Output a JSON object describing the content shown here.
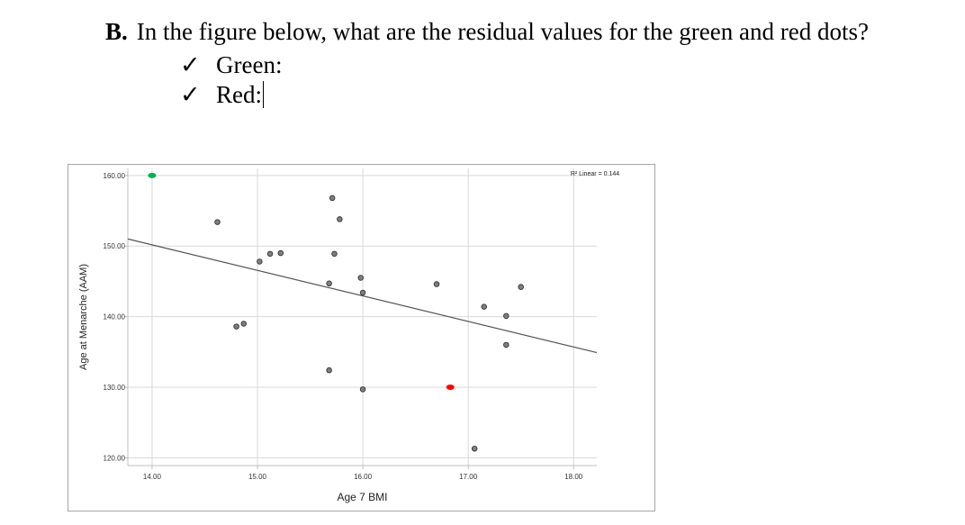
{
  "question": {
    "number": "B.",
    "text": "In the figure below, what are the residual values for the green and red dots?"
  },
  "answers": [
    {
      "check": "✓",
      "label": "Green:"
    },
    {
      "check": "✓",
      "label": "Red:"
    }
  ],
  "chart_data": {
    "type": "scatter",
    "xlabel": "Age 7 BMI",
    "ylabel": "Age at Menarche (AAM)",
    "xlim": [
      13.77,
      18.22
    ],
    "ylim": [
      118.9,
      161.0
    ],
    "xticks": [
      14,
      15,
      16,
      17,
      18
    ],
    "yticks": [
      120,
      130,
      140,
      150,
      160
    ],
    "xtick_labels": [
      "14.00",
      "15.00",
      "16.00",
      "17.00",
      "18.00"
    ],
    "ytick_labels": [
      "120.00",
      "130.00",
      "140.00",
      "150.00",
      "160.00"
    ],
    "grid": true,
    "r2_label": "R² Linear = 0.144",
    "fit_line": {
      "x": [
        13.77,
        18.22
      ],
      "y": [
        151.0,
        134.9
      ]
    },
    "points": [
      {
        "x": 14.0,
        "y": 160.0,
        "color": "#00b050",
        "highlight": "green"
      },
      {
        "x": 14.62,
        "y": 153.4
      },
      {
        "x": 14.8,
        "y": 138.6
      },
      {
        "x": 14.87,
        "y": 139.0
      },
      {
        "x": 15.02,
        "y": 147.8
      },
      {
        "x": 15.12,
        "y": 148.9
      },
      {
        "x": 15.22,
        "y": 149.0
      },
      {
        "x": 15.68,
        "y": 144.7
      },
      {
        "x": 15.68,
        "y": 132.4
      },
      {
        "x": 15.71,
        "y": 156.8
      },
      {
        "x": 15.73,
        "y": 148.9
      },
      {
        "x": 15.78,
        "y": 153.8
      },
      {
        "x": 15.98,
        "y": 145.5
      },
      {
        "x": 16.0,
        "y": 143.4
      },
      {
        "x": 16.0,
        "y": 129.7
      },
      {
        "x": 16.7,
        "y": 144.6
      },
      {
        "x": 16.83,
        "y": 130.0,
        "color": "#ff0000",
        "highlight": "red"
      },
      {
        "x": 17.06,
        "y": 121.3
      },
      {
        "x": 17.15,
        "y": 141.4
      },
      {
        "x": 17.36,
        "y": 140.1
      },
      {
        "x": 17.36,
        "y": 136.0
      },
      {
        "x": 17.5,
        "y": 144.2
      }
    ]
  }
}
